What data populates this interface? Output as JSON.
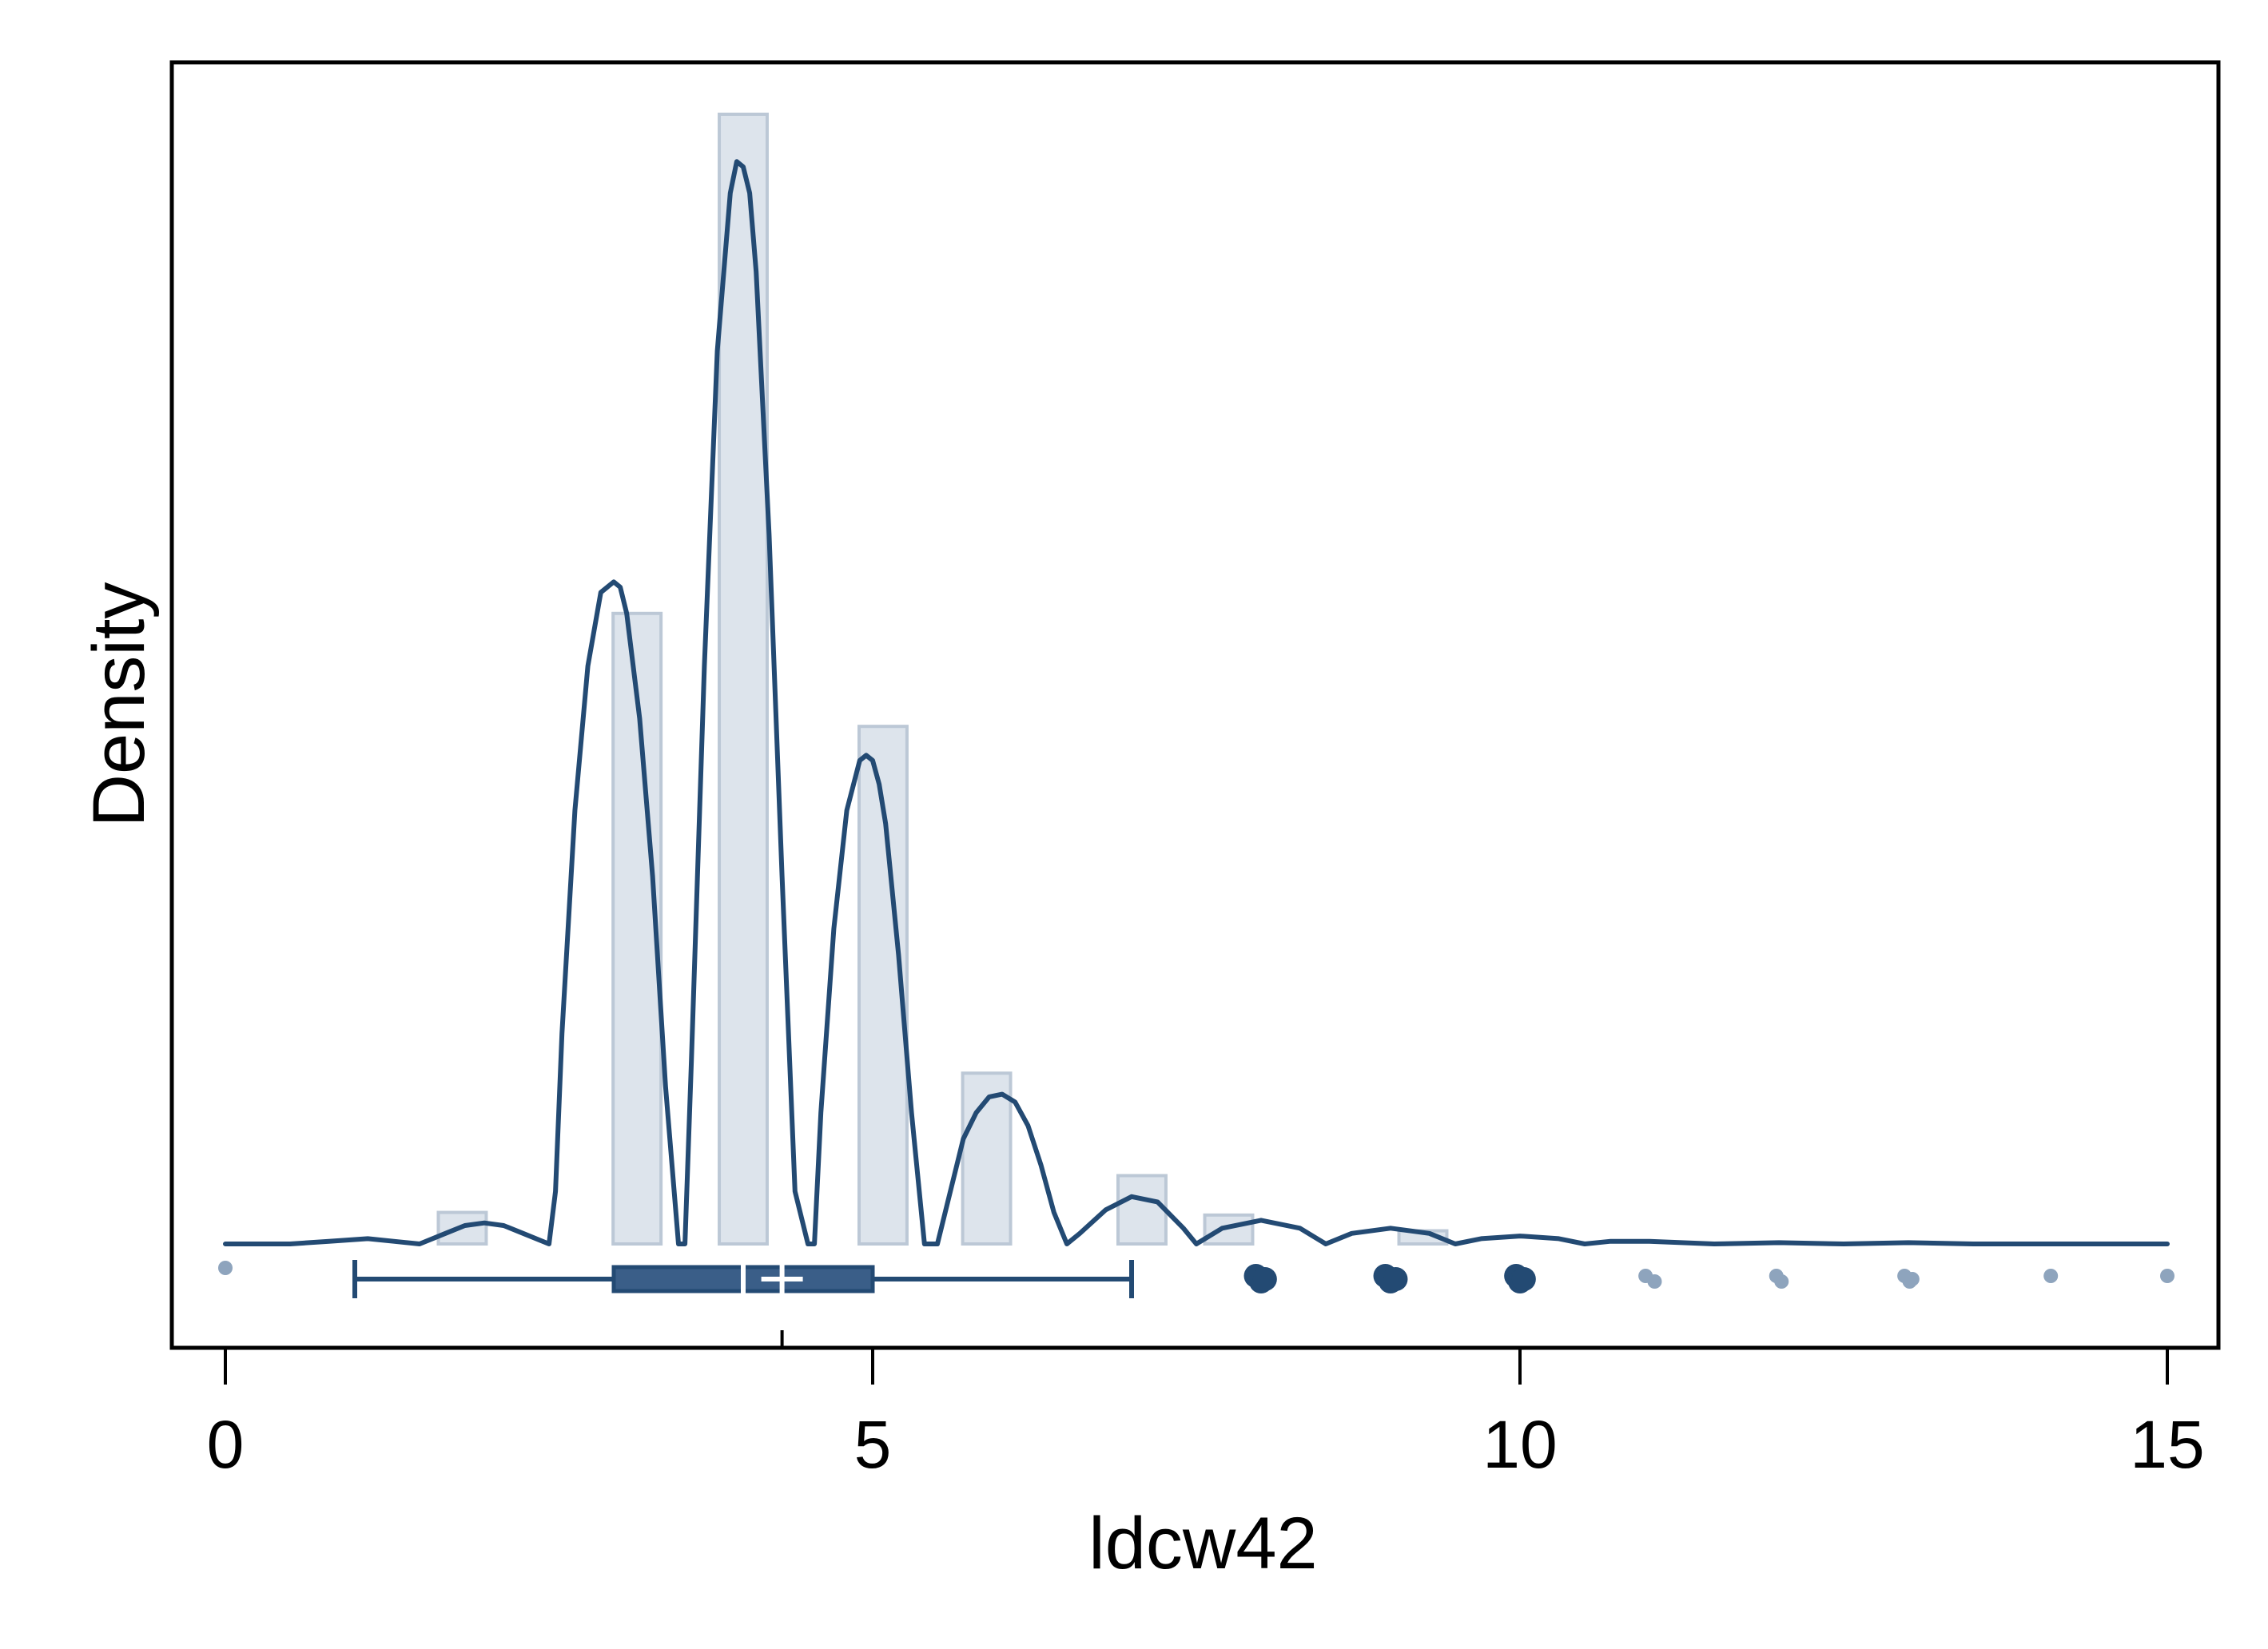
{
  "chart_data": {
    "type": "histogram",
    "xlabel": "ldcw42",
    "ylabel": "Density",
    "xlim": [
      0,
      15
    ],
    "x_ticks": [
      0,
      5,
      10,
      15
    ],
    "x_tick_labels": [
      "0",
      "5",
      "10",
      "15"
    ],
    "grid": false,
    "histogram": {
      "bin_width": 0.37,
      "bars": [
        {
          "x": 1.83,
          "height": 0.012
        },
        {
          "x": 3.18,
          "height": 0.24
        },
        {
          "x": 4.0,
          "height": 0.43
        },
        {
          "x": 5.08,
          "height": 0.197
        },
        {
          "x": 5.88,
          "height": 0.065
        },
        {
          "x": 7.08,
          "height": 0.026
        },
        {
          "x": 7.75,
          "height": 0.011
        },
        {
          "x": 9.25,
          "height": 0.005
        }
      ]
    },
    "density_curve": {
      "x": [
        0,
        0.5,
        0.8,
        1.1,
        1.3,
        1.5,
        1.7,
        1.85,
        2.0,
        2.15,
        2.3,
        2.5,
        2.55,
        2.6,
        2.7,
        2.8,
        2.9,
        3.0,
        3.05,
        3.1,
        3.2,
        3.3,
        3.4,
        3.5,
        3.55,
        3.6,
        3.7,
        3.8,
        3.9,
        3.95,
        4.0,
        4.05,
        4.1,
        4.2,
        4.3,
        4.4,
        4.5,
        4.55,
        4.6,
        4.7,
        4.8,
        4.9,
        4.95,
        5.0,
        5.05,
        5.1,
        5.2,
        5.3,
        5.4,
        5.5,
        5.6,
        5.7,
        5.8,
        5.9,
        6.0,
        6.1,
        6.2,
        6.3,
        6.4,
        6.5,
        6.6,
        6.8,
        7.0,
        7.2,
        7.4,
        7.5,
        7.7,
        8.0,
        8.3,
        8.5,
        8.7,
        9.0,
        9.3,
        9.5,
        9.7,
        10.0,
        10.3,
        10.5,
        10.7,
        11.0,
        11.5,
        12.0,
        12.5,
        13.0,
        13.5,
        14.0,
        14.5,
        15.0
      ],
      "y": [
        0.0,
        0.0,
        0.001,
        0.002,
        0.001,
        0.0,
        0.004,
        0.007,
        0.008,
        0.007,
        0.004,
        0.0,
        0.02,
        0.08,
        0.165,
        0.22,
        0.248,
        0.252,
        0.25,
        0.24,
        0.2,
        0.14,
        0.06,
        0.0,
        0.0,
        0.07,
        0.22,
        0.34,
        0.4,
        0.412,
        0.41,
        0.4,
        0.37,
        0.27,
        0.14,
        0.02,
        0.0,
        0.0,
        0.05,
        0.12,
        0.165,
        0.184,
        0.186,
        0.184,
        0.175,
        0.16,
        0.11,
        0.05,
        0.0,
        0.0,
        0.02,
        0.04,
        0.05,
        0.056,
        0.057,
        0.054,
        0.045,
        0.03,
        0.012,
        0.0,
        0.004,
        0.013,
        0.018,
        0.016,
        0.006,
        0.0,
        0.006,
        0.009,
        0.006,
        0.0,
        0.004,
        0.006,
        0.004,
        0.0,
        0.002,
        0.003,
        0.002,
        0.0,
        0.001,
        0.001,
        0.0,
        0.0005,
        0.0,
        0.0005,
        0.0,
        0.0,
        0.0,
        0.0
      ]
    },
    "boxplot": {
      "whisker_low": 1,
      "q1": 3,
      "mean": 4.3,
      "median": 4,
      "q3": 5,
      "whisker_high": 7,
      "outliers_primary": [
        8,
        9,
        10
      ],
      "outliers_secondary": [
        0,
        11,
        12,
        13,
        14.1,
        15
      ],
      "outlier_jitter": {
        "8": [
          7.96,
          8.0,
          8.03
        ],
        "9": [
          8.96,
          9.0,
          9.04
        ],
        "10": [
          9.97,
          10.0,
          10.03
        ],
        "11": [
          10.97,
          11.04
        ],
        "12": [
          11.98,
          12.02
        ],
        "13": [
          12.97,
          13.01,
          13.03
        ]
      }
    },
    "colors": {
      "bar_fill": "#dde4ec",
      "bar_stroke": "#bcc8d6",
      "curve": "#234a73",
      "box_fill": "#3a5e88",
      "box_stroke": "#234a73",
      "outlier_primary": "#234a73",
      "outlier_secondary": "#8ea4bd",
      "frame": "#000000"
    }
  }
}
